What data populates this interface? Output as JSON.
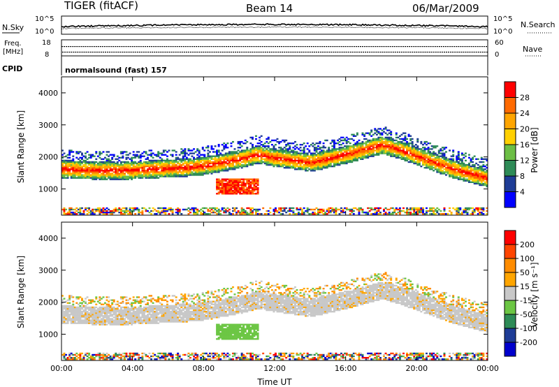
{
  "header": {
    "radar": "TIGER (fitACF)",
    "beam": "Beam 14",
    "date": "06/Mar/2009"
  },
  "strips": {
    "nsky_label": "N.Sky",
    "nsky_ticks": [
      "10^5",
      "10^0"
    ],
    "nsearch_label": "N.Search",
    "nsearch_ticks": [
      "10^5",
      "10^0"
    ],
    "freq_label_line1": "Freq.",
    "freq_label_line2": "[MHz]",
    "freq_ticks": [
      "18",
      "8"
    ],
    "nave_label": "Nave",
    "nave_ticks": [
      "60",
      "0"
    ],
    "cpid_label": "CPID",
    "cpid_text": "normalsound (fast) 157"
  },
  "chart_data": [
    {
      "type": "heatmap",
      "panel": "power",
      "title": "",
      "xlabel": "Time UT",
      "ylabel": "Slant Range [km]",
      "xlim": [
        0,
        24
      ],
      "ylim": [
        180,
        4500
      ],
      "x_tick_labels": [
        "00:00",
        "04:00",
        "08:00",
        "12:00",
        "16:00",
        "20:00",
        "00:00"
      ],
      "y_tick_values": [
        1000,
        2000,
        3000,
        4000
      ],
      "y_tick_labels": [
        "1000",
        "2000",
        "3000",
        "4000"
      ],
      "colorbar": {
        "label": "Power [dB]",
        "tick_labels": [
          "4",
          "8",
          "12",
          "16",
          "20",
          "24",
          "28"
        ],
        "colors": [
          "#0000ff",
          "#1e3c96",
          "#2e8b57",
          "#6cbe45",
          "#ffd000",
          "#ffa500",
          "#ff6a00",
          "#ff0000"
        ]
      },
      "band_center_km": [
        [
          0,
          1600
        ],
        [
          2,
          1550
        ],
        [
          4,
          1560
        ],
        [
          6,
          1620
        ],
        [
          7,
          1650
        ],
        [
          8,
          1700
        ],
        [
          10,
          1900
        ],
        [
          11,
          2050
        ],
        [
          12,
          1950
        ],
        [
          14,
          1800
        ],
        [
          16,
          2050
        ],
        [
          18,
          2350
        ],
        [
          19,
          2200
        ],
        [
          21,
          1800
        ],
        [
          22,
          1600
        ],
        [
          24,
          1300
        ]
      ]
    },
    {
      "type": "heatmap",
      "panel": "velocity",
      "title": "",
      "xlabel": "Time UT",
      "ylabel": "Slant Range [km]",
      "xlim": [
        0,
        24
      ],
      "ylim": [
        180,
        4500
      ],
      "x_tick_labels": [
        "00:00",
        "04:00",
        "08:00",
        "12:00",
        "16:00",
        "20:00",
        "00:00"
      ],
      "y_tick_values": [
        1000,
        2000,
        3000,
        4000
      ],
      "y_tick_labels": [
        "1000",
        "2000",
        "3000",
        "4000"
      ],
      "colorbar": {
        "label": "Velocity [m s⁻¹]",
        "tick_labels": [
          "200",
          "100",
          "50",
          "15",
          "-15",
          "-50",
          "-100",
          "-200"
        ],
        "colors": [
          "#0000cd",
          "#1e3c96",
          "#2e8b57",
          "#6cc644",
          "#c8c8c8",
          "#ffa500",
          "#ff8c00",
          "#ff4500",
          "#ff0000"
        ]
      }
    }
  ]
}
